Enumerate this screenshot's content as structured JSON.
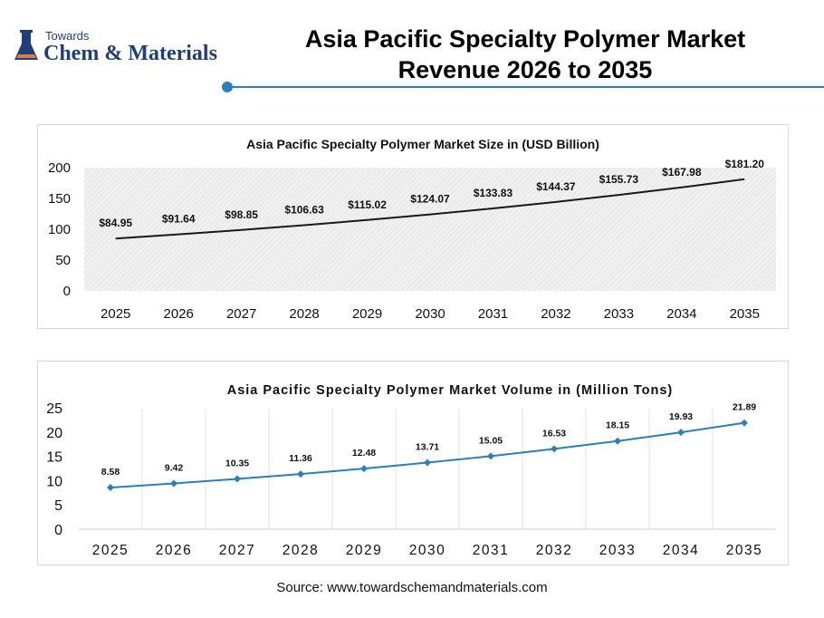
{
  "brand": {
    "top_text": "Towards",
    "main_text": "Chem & Materials",
    "color": "#1f3f7a"
  },
  "title": {
    "line1": "Asia Pacific Specialty Polymer Market",
    "line2": "Revenue 2026 to 2035"
  },
  "accent": "#2a7fb8",
  "source": "Source: www.towardschemandmaterials.com",
  "chart_data": [
    {
      "type": "line",
      "title": "Asia Pacific Specialty Polymer Market Size in (USD Billion)",
      "categories": [
        "2025",
        "2026",
        "2027",
        "2028",
        "2029",
        "2030",
        "2031",
        "2032",
        "2033",
        "2034",
        "2035"
      ],
      "values": [
        84.95,
        91.64,
        98.85,
        106.63,
        115.02,
        124.07,
        133.83,
        144.37,
        155.73,
        167.98,
        181.2
      ],
      "data_labels": [
        "$84.95",
        "$91.64",
        "$98.85",
        "$106.63",
        "$115.02",
        "$124.07",
        "$133.83",
        "$144.37",
        "$155.73",
        "$167.98",
        "$181.20"
      ],
      "ylim": [
        0,
        200
      ],
      "yticks": [
        0,
        50,
        100,
        150,
        200
      ],
      "line_color": "#1a1a1a",
      "background": "hatched light gray"
    },
    {
      "type": "line",
      "title": "Asia Pacific Specialty Polymer Market Volume in (Million Tons)",
      "categories": [
        "2025",
        "2026",
        "2027",
        "2028",
        "2029",
        "2030",
        "2031",
        "2032",
        "2033",
        "2034",
        "2035"
      ],
      "values": [
        8.58,
        9.42,
        10.35,
        11.36,
        12.48,
        13.71,
        15.05,
        16.53,
        18.15,
        19.93,
        21.89
      ],
      "data_labels": [
        "8.58",
        "9.42",
        "10.35",
        "11.36",
        "12.48",
        "13.71",
        "15.05",
        "16.53",
        "18.15",
        "19.93",
        "21.89"
      ],
      "ylim": [
        0,
        25
      ],
      "yticks": [
        0,
        5,
        10,
        15,
        20,
        25
      ],
      "line_color": "#2a7fb8",
      "markers": "diamond",
      "grid": "vertical"
    }
  ]
}
